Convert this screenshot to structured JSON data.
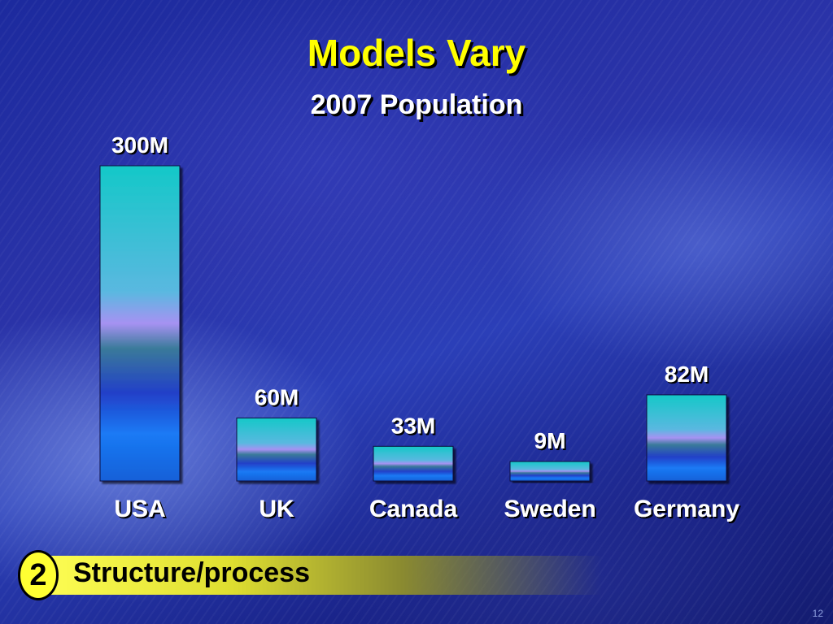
{
  "slide": {
    "title": "Models Vary",
    "subtitle": "2007 Population",
    "badge_number": "2",
    "banner_text": "Structure/process",
    "page_number": "12"
  },
  "chart_data": {
    "type": "bar",
    "title": "2007 Population",
    "categories": [
      "USA",
      "UK",
      "Canada",
      "Sweden",
      "Germany"
    ],
    "values": [
      300,
      60,
      33,
      9,
      82
    ],
    "value_labels": [
      "300M",
      "60M",
      "33M",
      "9M",
      "82M"
    ],
    "unit": "M",
    "ylim": [
      0,
      300
    ],
    "grid": false,
    "colors": {
      "bar_top": "#18c8c8",
      "bar_mid": "#a090f0",
      "bar_bottom": "#1a6ef0",
      "label": "#ffffff",
      "title": "#ffff00"
    }
  }
}
